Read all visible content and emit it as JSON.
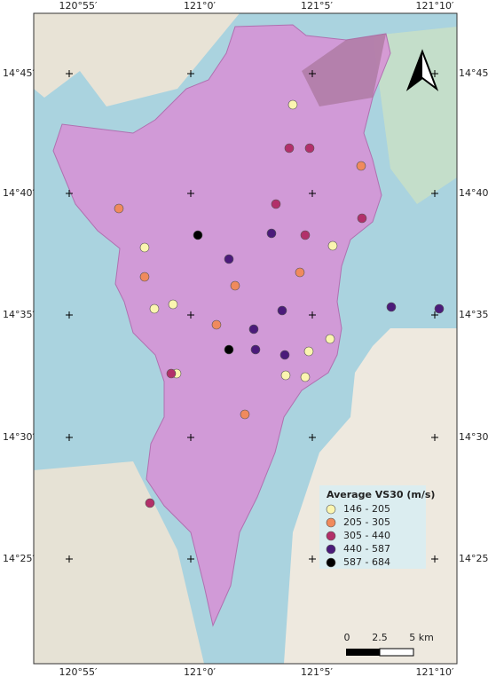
{
  "coords": {
    "top": [
      "120°55′",
      "121°0′",
      "121°5′",
      "121°10′"
    ],
    "bottom": [
      "120°55′",
      "121°0′",
      "121°5′",
      "121°10′"
    ],
    "left": [
      "14°45′",
      "14°40′",
      "14°35′",
      "14°30′",
      "14°25′"
    ],
    "right": [
      "14°45′",
      "14°40′",
      "14°35′",
      "14°30′",
      "14°25′"
    ]
  },
  "legend": {
    "title": "Average VS30 (m/s)",
    "items": [
      {
        "label": "146 - 205",
        "color": "#fbf5b0"
      },
      {
        "label": "205 - 305",
        "color": "#f08a5d"
      },
      {
        "label": "305 - 440",
        "color": "#b2306a"
      },
      {
        "label": "440 - 587",
        "color": "#4b1b7a"
      },
      {
        "label": "587 - 684",
        "color": "#000000"
      }
    ]
  },
  "scale_bar": {
    "labels": [
      "0",
      "2.5",
      "5 km"
    ]
  }
}
